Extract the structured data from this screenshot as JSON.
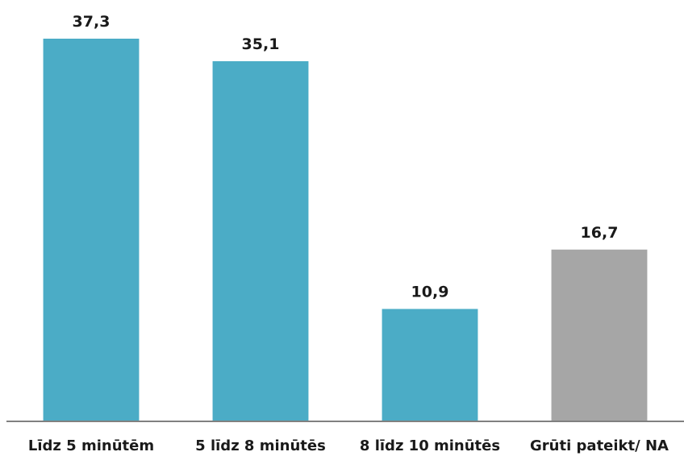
{
  "chart_data": {
    "type": "bar",
    "title": "",
    "xlabel": "",
    "ylabel": "",
    "ylim": [
      0,
      37.3
    ],
    "grid": false,
    "legend": "none",
    "categories": [
      "Līdz 5 minūtēm",
      "5 līdz 8 minūtēs",
      "8 līdz 10 minūtēs",
      "Grūti pateikt/ NA"
    ],
    "values": [
      37.3,
      35.1,
      10.9,
      16.7
    ],
    "value_labels": [
      "37,3",
      "35,1",
      "10,9",
      "16,7"
    ],
    "colors": [
      "#4bacc6",
      "#4bacc6",
      "#4bacc6",
      "#a6a6a6"
    ],
    "axis_color": "#808080"
  }
}
